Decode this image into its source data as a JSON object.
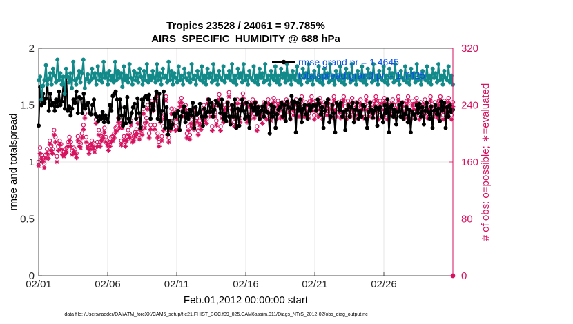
{
  "chart_data": {
    "type": "line",
    "title": "Tropics 23528 / 24061 = 97.785%",
    "subtitle": "AIRS_SPECIFIC_HUMIDITY @ 688 hPa",
    "xlabel": "Feb.01,2012 00:00:00 start",
    "ylabel_left": "rmse and totalspread",
    "ylabel_right": "# of obs: o=possible; ∗=evaluated",
    "footer": "data file: /Users/raeder/DAI/ATM_forcXX/CAM6_setup/f.e21.FHIST_BGC.f09_025.CAM6assim.011/Diags_NTrS_2012-02/obs_diag_output.nc",
    "x_ticks": [
      "02/01",
      "02/06",
      "02/11",
      "02/16",
      "02/21",
      "02/26"
    ],
    "x_range_days": [
      0,
      30
    ],
    "y_left_ticks": [
      "0",
      "0.5",
      "1",
      "1.5",
      "2"
    ],
    "y_left_range": [
      0,
      2
    ],
    "y_right_ticks": [
      "0",
      "80",
      "160",
      "240",
      "320"
    ],
    "y_right_range": [
      0,
      320
    ],
    "grid": true,
    "legend_placement": "top-right",
    "legend": [
      "rmse grand pr = 1.4645",
      "totalspread grand pr = 1.7425"
    ],
    "colors": {
      "rmse": "#000000",
      "totalspread": "#138a8a",
      "obs": "#d6135f",
      "grid": "#dcdcdc",
      "legend_text": "#0a50e6"
    },
    "series": [
      {
        "name": "rmse grand pr = 1.4645",
        "axis": "left",
        "marker": "filled-circle",
        "values": [
          1.32,
          1.66,
          1.5,
          1.6,
          1.52,
          1.56,
          1.72,
          1.45,
          1.6,
          1.5,
          1.52,
          1.45,
          1.55,
          1.49,
          1.62,
          1.5,
          1.53,
          1.68,
          1.47,
          1.75,
          1.45,
          1.49,
          1.41,
          1.47,
          1.55,
          1.52,
          1.62,
          1.43,
          1.57,
          1.56,
          1.43,
          1.6,
          1.47,
          1.5,
          1.52,
          1.43,
          1.42,
          1.5,
          1.55,
          1.42,
          1.4,
          1.36,
          1.4,
          1.38,
          1.44,
          1.35,
          1.41,
          1.38,
          1.35,
          1.5,
          1.45,
          1.58,
          1.6,
          1.62,
          1.55,
          1.38,
          1.55,
          1.41,
          1.32,
          1.48,
          1.34,
          1.57,
          1.38,
          1.35,
          1.43,
          1.48,
          1.51,
          1.38,
          1.56,
          1.43,
          1.3,
          1.55,
          1.49,
          1.57,
          1.58,
          1.55,
          1.59,
          1.38,
          1.51,
          1.46,
          1.56,
          1.62,
          1.38,
          1.6,
          1.36,
          1.45,
          1.62,
          1.3,
          1.48,
          1.24,
          1.36,
          1.3,
          1.33,
          1.42,
          1.4,
          1.43,
          1.45,
          1.28,
          1.4,
          1.44,
          1.49,
          1.35,
          1.43,
          1.38,
          1.46,
          1.41,
          1.52,
          1.3,
          1.48,
          1.42,
          1.43,
          1.51,
          1.4,
          1.32,
          1.47,
          1.4,
          1.44,
          1.55,
          1.44,
          1.52,
          1.4,
          1.46,
          1.54,
          1.52,
          1.5,
          1.43,
          1.55,
          1.38,
          1.42,
          1.36,
          1.52,
          1.4,
          1.33,
          1.5,
          1.4,
          1.55,
          1.3,
          1.47,
          1.32,
          1.45,
          1.55,
          1.45,
          1.38,
          1.52,
          1.4,
          1.3,
          1.5,
          1.48,
          1.45,
          1.52,
          1.42,
          1.48,
          1.38,
          1.45,
          1.49,
          1.4,
          1.52,
          1.44,
          1.43,
          1.25,
          1.5,
          1.4,
          1.48,
          1.3,
          1.42,
          1.46,
          1.48,
          1.52,
          1.4,
          1.5,
          1.36,
          1.53,
          1.48,
          1.38,
          1.58,
          1.47,
          1.53,
          1.26,
          1.52,
          1.45,
          1.55,
          1.35,
          1.47,
          1.5,
          1.42,
          1.38,
          1.5,
          1.45,
          1.48,
          1.5,
          1.5,
          1.45,
          1.55,
          1.51,
          1.42,
          1.48,
          1.3,
          1.45,
          1.52,
          1.55,
          1.35,
          1.4,
          1.5,
          1.43,
          1.26,
          1.52,
          1.5,
          1.45,
          1.52,
          1.4,
          1.44,
          1.28,
          1.46,
          1.5,
          1.4,
          1.48,
          1.52,
          1.35,
          1.46,
          1.52,
          1.38,
          1.45,
          1.4,
          1.5,
          1.49,
          1.38,
          1.3,
          1.44,
          1.52,
          1.46,
          1.39,
          1.45,
          1.48,
          1.32,
          1.46,
          1.48,
          1.4,
          1.35,
          1.5,
          1.43,
          1.55,
          1.26,
          1.48,
          1.5,
          1.4,
          1.46,
          1.33,
          1.44,
          1.5,
          1.4,
          1.52,
          1.38,
          1.42,
          1.48,
          1.35,
          1.46,
          1.26,
          1.44,
          1.42,
          1.38,
          1.5,
          1.43,
          1.51,
          1.4,
          1.48,
          1.33,
          1.45,
          1.52,
          1.44,
          1.38,
          1.49,
          1.3,
          1.45,
          1.5,
          1.42,
          1.47,
          1.36,
          1.53,
          1.45,
          1.52,
          1.3,
          1.48,
          1.4,
          1.5,
          1.44,
          1.46
        ]
      },
      {
        "name": "totalspread grand pr = 1.7425",
        "axis": "left",
        "marker": "filled-circle",
        "values": [
          1.72,
          1.75,
          1.55,
          1.67,
          1.72,
          1.85,
          1.68,
          1.73,
          1.78,
          1.68,
          1.82,
          1.76,
          1.7,
          1.9,
          1.72,
          1.78,
          1.68,
          1.75,
          1.6,
          1.82,
          1.75,
          1.7,
          1.78,
          1.65,
          1.88,
          1.72,
          1.68,
          1.74,
          1.8,
          1.7,
          1.78,
          1.9,
          1.65,
          1.73,
          1.77,
          1.7,
          1.72,
          1.82,
          1.74,
          1.78,
          1.68,
          1.84,
          1.72,
          1.77,
          1.7,
          1.88,
          1.74,
          1.78,
          1.68,
          1.8,
          1.72,
          1.76,
          1.7,
          1.88,
          1.72,
          1.8,
          1.74,
          1.78,
          1.66,
          1.84,
          1.72,
          1.76,
          1.7,
          1.86,
          1.74,
          1.68,
          1.8,
          1.72,
          1.78,
          1.7,
          1.82,
          1.75,
          1.68,
          1.8,
          1.72,
          1.86,
          1.7,
          1.76,
          1.72,
          1.8,
          1.74,
          1.7,
          1.86,
          1.72,
          1.78,
          1.68,
          1.82,
          1.74,
          1.76,
          1.7,
          1.88,
          1.72,
          1.8,
          1.68,
          1.78,
          1.74,
          1.7,
          1.84,
          1.72,
          1.76,
          1.68,
          1.82,
          1.74,
          1.72,
          1.78,
          1.7,
          1.86,
          1.73,
          1.76,
          1.68,
          1.8,
          1.74,
          1.72,
          1.84,
          1.7,
          1.76,
          1.68,
          1.82,
          1.74,
          1.78,
          1.7,
          1.86,
          1.72,
          1.76,
          1.68,
          1.8,
          1.74,
          1.72,
          1.84,
          1.7,
          1.76,
          1.74,
          1.8,
          1.72,
          1.86,
          1.7,
          1.76,
          1.68,
          1.82,
          1.74,
          1.78,
          1.7,
          1.86,
          1.72,
          1.76,
          1.68,
          1.8,
          1.74,
          1.72,
          1.84,
          1.7,
          1.76,
          1.68,
          1.82,
          1.74,
          1.78,
          1.7,
          1.86,
          1.72,
          1.76,
          1.68,
          1.8,
          1.74,
          1.72,
          1.84,
          1.7,
          1.76,
          1.68,
          1.82,
          1.74,
          1.78,
          1.7,
          1.86,
          1.72,
          1.76,
          1.68,
          1.8,
          1.74,
          1.72,
          1.84,
          1.7,
          1.76,
          1.68,
          1.82,
          1.74,
          1.78,
          1.7,
          1.86,
          1.72,
          1.76,
          1.68,
          1.8,
          1.74,
          1.72,
          1.84,
          1.7,
          1.76,
          1.68,
          1.82,
          1.74,
          1.78,
          1.7,
          1.86,
          1.72,
          1.76,
          1.68,
          1.8,
          1.74,
          1.72,
          1.84,
          1.7,
          1.76,
          1.68,
          1.82,
          1.74,
          1.78,
          1.7,
          1.86,
          1.72,
          1.76,
          1.68,
          1.8,
          1.74,
          1.72,
          1.84,
          1.7,
          1.76,
          1.68,
          1.82,
          1.74,
          1.78,
          1.7,
          1.86,
          1.72,
          1.76,
          1.68,
          1.8,
          1.74,
          1.72,
          1.84,
          1.7,
          1.76,
          1.68,
          1.82,
          1.74,
          1.78,
          1.7,
          1.86,
          1.72,
          1.76,
          1.68,
          1.8,
          1.74,
          1.72,
          1.84,
          1.7,
          1.76,
          1.68,
          1.82,
          1.74,
          1.78,
          1.7,
          1.86,
          1.72,
          1.76,
          1.68,
          1.8,
          1.74,
          1.72,
          1.84,
          1.7,
          1.76,
          1.68,
          1.82,
          1.74,
          1.78,
          1.7,
          1.86,
          1.72,
          1.76,
          1.68,
          1.8,
          1.74,
          1.72,
          1.84,
          1.7,
          1.76,
          1.68
        ]
      },
      {
        "name": "o=possible",
        "axis": "right",
        "marker": "open-circle",
        "values": [
          160,
          180,
          170,
          165,
          158,
          170,
          178,
          172,
          190,
          183,
          178,
          205,
          195,
          168,
          182,
          190,
          185,
          176,
          174,
          178,
          180,
          188,
          195,
          188,
          176,
          180,
          178,
          172,
          196,
          188,
          186,
          200,
          212,
          228,
          195,
          185,
          178,
          184,
          190,
          186,
          180,
          220,
          188,
          205,
          188,
          196,
          200,
          208,
          195,
          190,
          182,
          188,
          195,
          196,
          200,
          208,
          210,
          222,
          215,
          190,
          215,
          196,
          188,
          196,
          205,
          200,
          218,
          194,
          196,
          202,
          206,
          220,
          198,
          210,
          204,
          235,
          215,
          222,
          240,
          200,
          212,
          246,
          238,
          212,
          252,
          200,
          188,
          222,
          196,
          210,
          226,
          252,
          205,
          194,
          210,
          235,
          218,
          234,
          210,
          226,
          212,
          244,
          250,
          238,
          230,
          240,
          200,
          210,
          198,
          220,
          215,
          212,
          236,
          222,
          204,
          218,
          212,
          230,
          240,
          224,
          220,
          248,
          236,
          230,
          210,
          244,
          230,
          218,
          246,
          255,
          210,
          228,
          222,
          240,
          236,
          244,
          258,
          222,
          240,
          232,
          216,
          226,
          248,
          238,
          222,
          240,
          256,
          248,
          230,
          222,
          244,
          226,
          236,
          248,
          228,
          244,
          210,
          238,
          226,
          232,
          220,
          244,
          238,
          226,
          248,
          234,
          224,
          240,
          250,
          236,
          226,
          246,
          238,
          228,
          244,
          236,
          226,
          248,
          242,
          236,
          226,
          244,
          238,
          232,
          248,
          240,
          230,
          240,
          252,
          238,
          230,
          244,
          236,
          228,
          246,
          252,
          238,
          226,
          246,
          240,
          230,
          250,
          238,
          226,
          244,
          238,
          232,
          248,
          240,
          228,
          240,
          252,
          238,
          230,
          244,
          236,
          228,
          246,
          252,
          238,
          226,
          246,
          240,
          230,
          250,
          238,
          226,
          244,
          238,
          232,
          248,
          240,
          228,
          240,
          252,
          238,
          230,
          244,
          236,
          228,
          246,
          252,
          238,
          226,
          246,
          240,
          230,
          250,
          238,
          226,
          244,
          238,
          232,
          248,
          240,
          228,
          240,
          252,
          238,
          230,
          244,
          236,
          228,
          246,
          252,
          238,
          226,
          246,
          240,
          230,
          250,
          238,
          226,
          244,
          238,
          232,
          248,
          240,
          228,
          240,
          252,
          238,
          230,
          244,
          236,
          228,
          246,
          252,
          238,
          226,
          246,
          240,
          230,
          250,
          238,
          226,
          244
        ]
      },
      {
        "name": "∗=evaluated",
        "axis": "right",
        "marker": "asterisk",
        "values": [
          155,
          172,
          165,
          160,
          152,
          165,
          172,
          165,
          185,
          176,
          172,
          198,
          188,
          160,
          176,
          185,
          178,
          170,
          168,
          172,
          174,
          182,
          190,
          182,
          170,
          174,
          172,
          166,
          190,
          182,
          180,
          194,
          206,
          222,
          188,
          180,
          172,
          178,
          184,
          180,
          174,
          214,
          182,
          198,
          182,
          190,
          194,
          202,
          188,
          184,
          176,
          182,
          188,
          190,
          194,
          202,
          204,
          216,
          208,
          184,
          208,
          190,
          182,
          190,
          198,
          194,
          212,
          188,
          190,
          196,
          200,
          214,
          192,
          204,
          198,
          228,
          208,
          216,
          234,
          194,
          206,
          240,
          232,
          206,
          246,
          194,
          182,
          216,
          190,
          204,
          220,
          246,
          198,
          188,
          204,
          228,
          212,
          228,
          204,
          220,
          206,
          238,
          244,
          232,
          224,
          234,
          194,
          204,
          192,
          214,
          208,
          206,
          230,
          216,
          198,
          212,
          206,
          224,
          234,
          218,
          214,
          242,
          230,
          224,
          204,
          238,
          224,
          212,
          240,
          248,
          204,
          222,
          216,
          234,
          230,
          238,
          252,
          216,
          234,
          226,
          210,
          220,
          242,
          232,
          216,
          234,
          250,
          242,
          224,
          216,
          238,
          220,
          230,
          242,
          222,
          238,
          204,
          232,
          220,
          226,
          214,
          238,
          232,
          220,
          242,
          228,
          218,
          234,
          244,
          230,
          220,
          240,
          232,
          222,
          238,
          230,
          220,
          242,
          236,
          230,
          220,
          238,
          232,
          226,
          242,
          234,
          224,
          234,
          246,
          232,
          224,
          238,
          230,
          222,
          240,
          246,
          232,
          220,
          240,
          234,
          224,
          244,
          232,
          220,
          238,
          232,
          226,
          242,
          234,
          222,
          234,
          246,
          232,
          224,
          238,
          230,
          222,
          240,
          246,
          232,
          220,
          240,
          234,
          224,
          244,
          232,
          220,
          238,
          232,
          226,
          242,
          234,
          222,
          234,
          246,
          232,
          224,
          238,
          230,
          222,
          240,
          246,
          232,
          220,
          240,
          234,
          224,
          244,
          232,
          220,
          238,
          232,
          226,
          242,
          234,
          222,
          234,
          246,
          232,
          224,
          238,
          230,
          222,
          240,
          246,
          232,
          220,
          240,
          234,
          224,
          244,
          232,
          220,
          238,
          232,
          226,
          242,
          234,
          222,
          234,
          246,
          232,
          224,
          238,
          230,
          222,
          240,
          246,
          232,
          220,
          240,
          234,
          224,
          244,
          232,
          220,
          238
        ]
      }
    ]
  }
}
